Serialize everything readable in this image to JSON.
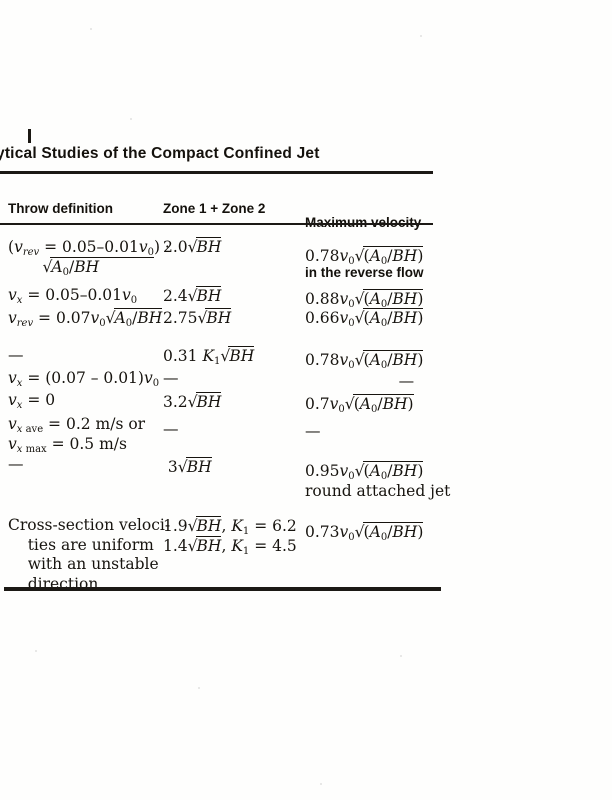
{
  "page": {
    "background": "#fefefd",
    "ink": "#17140f"
  },
  "title": {
    "text": "ytical Studies of the Compact Confined Jet"
  },
  "table": {
    "headers": {
      "col1": "Throw definition",
      "col2": "Zone 1 + Zone 2",
      "col3_line1": "Maximum velocity",
      "col3_line2": "in the reverse flow"
    },
    "rows": [
      {
        "c1": [
          "(i{v}_{i{rev}} = u{0.05–0.01i{v}_{0}}) ·",
          "       √{i{A}_{0}/i{BH}}"
        ],
        "c2": [
          "2.0√{i{BH}}"
        ],
        "c3": [
          "0.78i{v}_{0}√{(i{A}_{0}/i{BH})}"
        ]
      },
      {
        "c1": [
          "i{v}_{i{x}} = 0.05–0.01i{v}_{0}"
        ],
        "c2": [
          "2.4√{i{BH}}"
        ],
        "c3": [
          "0.88i{v}_{0}√{(i{A}_{0}/i{BH})}"
        ]
      },
      {
        "c1": [
          "i{v}_{i{rev}} = 0.07i{v}_{0}√{i{A}_{0}/i{BH}}"
        ],
        "c2": [
          "2.75√{i{BH}}"
        ],
        "c3": [
          "0.66i{v}_{0}√{(i{A}_{0}/i{BH})}"
        ]
      },
      {
        "c1": [
          "—"
        ],
        "c2": [
          "0.31 i{K}_{1}√{i{BH}}"
        ],
        "c3": [
          "0.78i{v}_{0}√{(i{A}_{0}/i{BH})}"
        ]
      },
      {
        "c1": [
          "i{v}_{i{x}} = (0.07 – 0.01)i{v}_{0}"
        ],
        "c2": [
          "—"
        ],
        "c3": [
          "                   —"
        ]
      },
      {
        "c1": [
          "i{v}_{i{x}} = 0"
        ],
        "c2": [
          "3.2√{i{BH}}"
        ],
        "c3": [
          "0.7i{v}_{0}√{(i{A}_{0}/i{BH})}"
        ]
      },
      {
        "c1": [
          "i{v}_{i{x} ave} = 0.2 m/s or",
          "i{v}_{i{x} max} = 0.5 m/s"
        ],
        "c2": [
          "—"
        ],
        "c3": [
          "—"
        ]
      },
      {
        "c1": [
          "—"
        ],
        "c2": [
          " 3√{i{BH}}"
        ],
        "c3": [
          "0.95i{v}_{0}√{(i{A}_{0}/i{BH})}",
          "round attached jet"
        ]
      },
      {
        "c1": [
          "Cross-section veloci-",
          "    ties are uniform",
          "    with an unstable",
          "    direction"
        ],
        "c2": [
          "1.9√{i{BH}}, i{K}_{1} = 6.2",
          "1.4√{i{BH}}, i{K}_{1} = 4.5"
        ],
        "c3": [
          "0.73i{v}_{0}√{(i{A}_{0}/i{BH})}"
        ]
      }
    ]
  }
}
